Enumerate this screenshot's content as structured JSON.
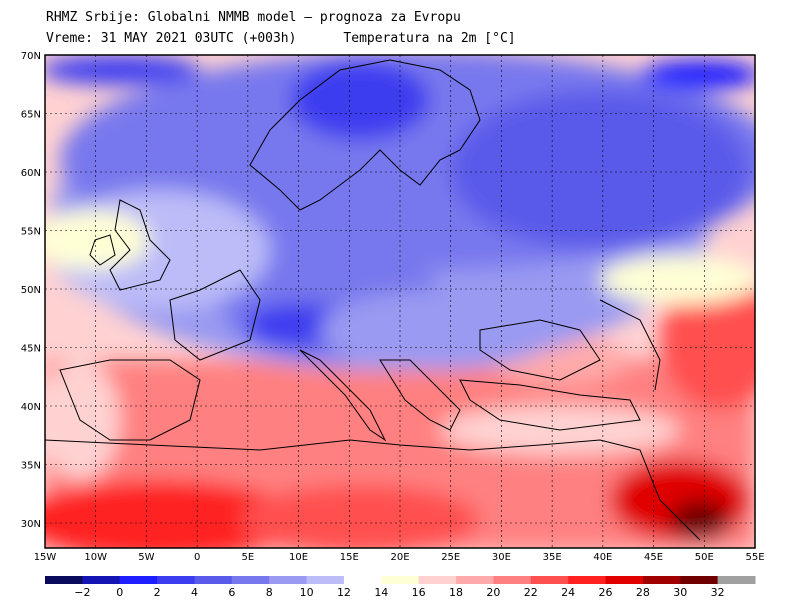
{
  "header": {
    "line1": "RHMZ Srbije: Globalni NMMB model — prognoza za Evropu",
    "line2": "Vreme: 31 MAY 2021 03UTC (+003h)      Temperatura na 2m [°C]"
  },
  "map": {
    "lat_labels": [
      "70N",
      "65N",
      "60N",
      "55N",
      "50N",
      "45N",
      "40N",
      "35N",
      "30N"
    ],
    "lon_labels": [
      "15W",
      "10W",
      "5W",
      "0",
      "5E",
      "10E",
      "15E",
      "20E",
      "25E",
      "30E",
      "35E",
      "40E",
      "45E",
      "50E",
      "55E"
    ]
  },
  "colorbar": {
    "labels": [
      "−2",
      "0",
      "2",
      "4",
      "6",
      "8",
      "10",
      "12",
      "14",
      "16",
      "18",
      "20",
      "22",
      "24",
      "26",
      "28",
      "30",
      "32"
    ],
    "colors": [
      "#0a0a5a",
      "#1414b4",
      "#1e1eff",
      "#3c3cf0",
      "#5a5aea",
      "#7878ee",
      "#9a9af2",
      "#bcbcf8",
      "#ffffff",
      "#ffffd6",
      "#ffd2d2",
      "#ffaaaa",
      "#ff8080",
      "#ff5050",
      "#ff2020",
      "#e00000",
      "#a00000",
      "#700000",
      "#a0a0a0"
    ]
  }
}
